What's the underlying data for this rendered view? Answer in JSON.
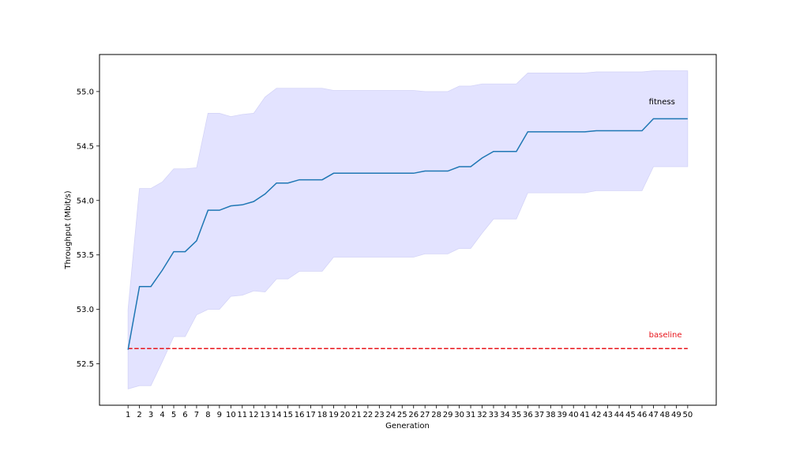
{
  "chart_data": {
    "type": "line",
    "title": "",
    "xlabel": "Generation",
    "ylabel": "Throughput (Mbit/s)",
    "x": [
      1,
      2,
      3,
      4,
      5,
      6,
      7,
      8,
      9,
      10,
      11,
      12,
      13,
      14,
      15,
      16,
      17,
      18,
      19,
      20,
      21,
      22,
      23,
      24,
      25,
      26,
      27,
      28,
      29,
      30,
      31,
      32,
      33,
      34,
      35,
      36,
      37,
      38,
      39,
      40,
      41,
      42,
      43,
      44,
      45,
      46,
      47,
      48,
      49,
      50
    ],
    "xlim": [
      -1.5,
      52.5
    ],
    "ylim": [
      52.12,
      55.34
    ],
    "yticks": [
      52.5,
      53.0,
      53.5,
      54.0,
      54.5,
      55.0
    ],
    "ytick_labels": [
      "52.5",
      "53.0",
      "53.5",
      "54.0",
      "54.5",
      "55.0"
    ],
    "grid": false,
    "series": [
      {
        "name": "fitness",
        "color": "#1f77b4",
        "values": [
          52.63,
          53.21,
          53.21,
          53.36,
          53.53,
          53.53,
          53.63,
          53.91,
          53.91,
          53.95,
          53.96,
          53.99,
          54.06,
          54.16,
          54.16,
          54.19,
          54.19,
          54.19,
          54.25,
          54.25,
          54.25,
          54.25,
          54.25,
          54.25,
          54.25,
          54.25,
          54.27,
          54.27,
          54.27,
          54.31,
          54.31,
          54.39,
          54.45,
          54.45,
          54.45,
          54.63,
          54.63,
          54.63,
          54.63,
          54.63,
          54.63,
          54.64,
          54.64,
          54.64,
          54.64,
          54.64,
          54.75,
          54.75,
          54.75,
          54.75
        ],
        "band_lower": [
          52.27,
          52.3,
          52.3,
          52.52,
          52.75,
          52.75,
          52.95,
          53.0,
          53.0,
          53.12,
          53.13,
          53.17,
          53.16,
          53.28,
          53.28,
          53.35,
          53.35,
          53.35,
          53.48,
          53.48,
          53.48,
          53.48,
          53.48,
          53.48,
          53.48,
          53.48,
          53.51,
          53.51,
          53.51,
          53.56,
          53.56,
          53.7,
          53.83,
          53.83,
          53.83,
          54.07,
          54.07,
          54.07,
          54.07,
          54.07,
          54.07,
          54.09,
          54.09,
          54.09,
          54.09,
          54.09,
          54.31,
          54.31,
          54.31,
          54.31
        ],
        "band_upper": [
          53.0,
          54.11,
          54.11,
          54.17,
          54.29,
          54.29,
          54.3,
          54.8,
          54.8,
          54.77,
          54.79,
          54.8,
          54.95,
          55.03,
          55.03,
          55.03,
          55.03,
          55.03,
          55.01,
          55.01,
          55.01,
          55.01,
          55.01,
          55.01,
          55.01,
          55.01,
          55.0,
          55.0,
          55.0,
          55.05,
          55.05,
          55.07,
          55.07,
          55.07,
          55.07,
          55.17,
          55.17,
          55.17,
          55.17,
          55.17,
          55.17,
          55.18,
          55.18,
          55.18,
          55.18,
          55.18,
          55.19,
          55.19,
          55.19,
          55.19
        ],
        "band_color": "#e3e3ff"
      },
      {
        "name": "baseline",
        "color": "#e8151b",
        "style": "dashed",
        "values_constant": 52.64
      }
    ],
    "annotations": [
      {
        "text": "fitness",
        "x": 46.6,
        "y": 54.91,
        "color": "#000000"
      },
      {
        "text": "baseline",
        "x": 46.6,
        "y": 52.77,
        "color": "#e8151b"
      }
    ]
  }
}
